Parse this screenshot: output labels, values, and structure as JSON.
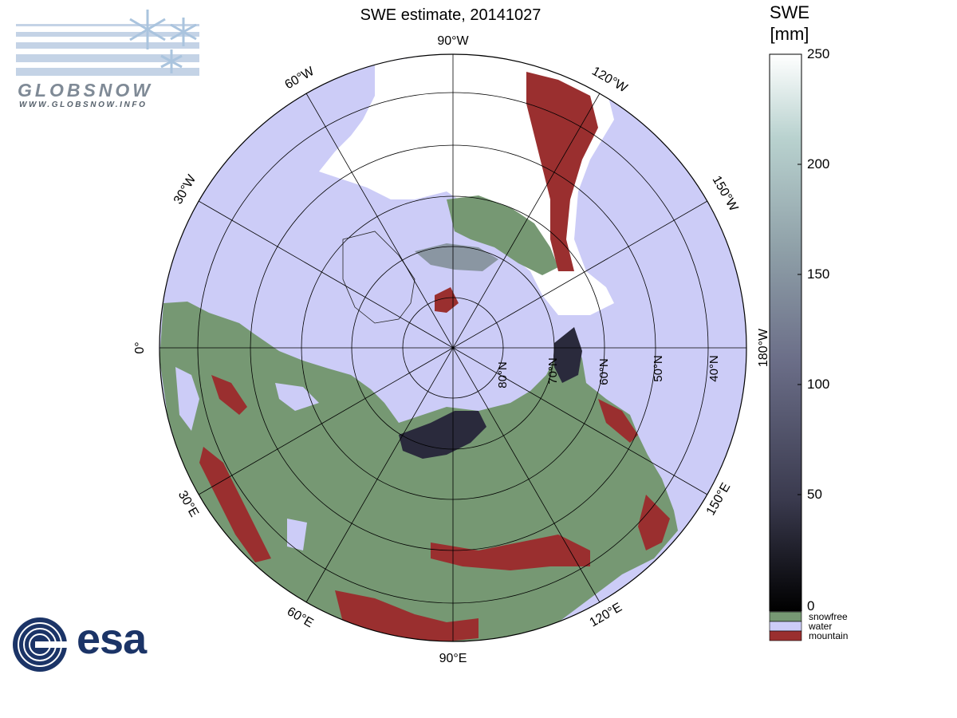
{
  "title": "SWE estimate, 20141027",
  "colorbar": {
    "title_line1": "SWE",
    "title_line2": "[mm]",
    "ticks": [
      "250",
      "200",
      "150",
      "100",
      "50",
      "0"
    ],
    "tick_values": [
      250,
      200,
      150,
      100,
      50,
      0
    ],
    "gradient_colors": [
      "#000000",
      "#3a3a4e",
      "#6b6e88",
      "#8fa0a8",
      "#b9d2cf",
      "#ffffff"
    ]
  },
  "legend": [
    {
      "label": "snowfree",
      "color": "#769873"
    },
    {
      "label": "water",
      "color": "#ccccf7"
    },
    {
      "label": "mountain",
      "color": "#9a2f2f"
    }
  ],
  "map": {
    "longitude_labels": [
      "90°W",
      "120°W",
      "150°W",
      "180°W",
      "150°E",
      "120°E",
      "90°E",
      "60°E",
      "30°E",
      "0°",
      "30°W",
      "60°W"
    ],
    "latitude_labels": [
      "80°N",
      "70°N",
      "60°N",
      "50°N",
      "40°N"
    ],
    "colors": {
      "ocean": "#ccccf7",
      "snowfree": "#769873",
      "mountain": "#9a2f2f",
      "snow_white": "#ffffff",
      "deep_snow": "#2a2a3c"
    }
  },
  "logos": {
    "globsnow_text": "GLOBSNOW",
    "globsnow_url": "WWW.GLOBSNOW.INFO",
    "esa_text": "esa"
  }
}
